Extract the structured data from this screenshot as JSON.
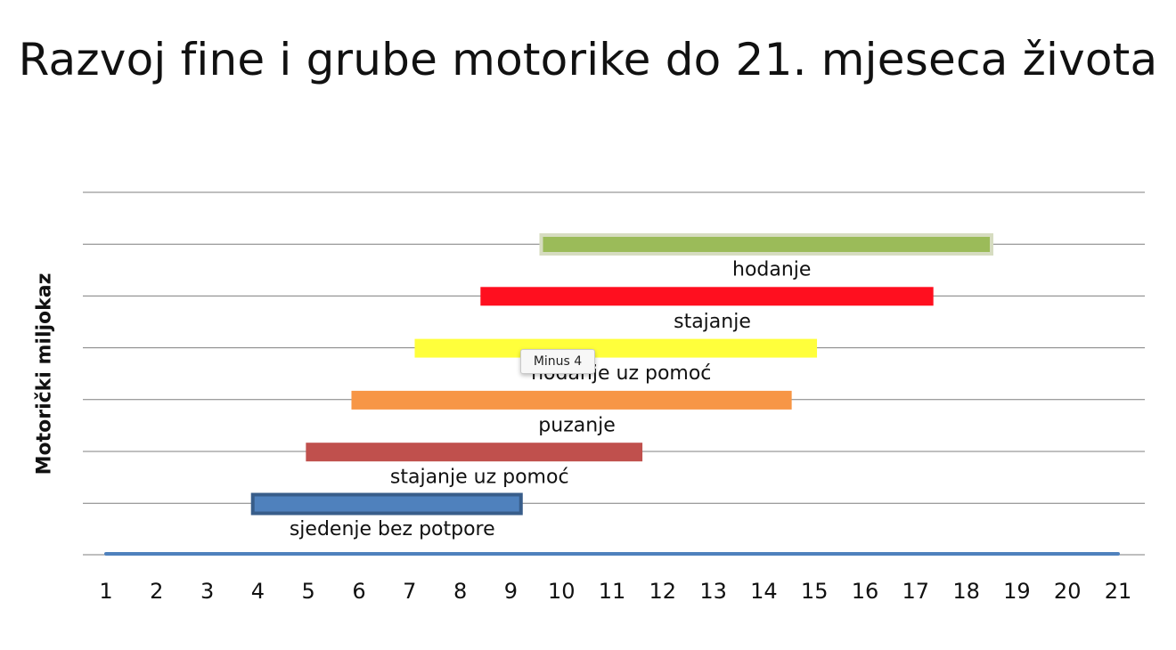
{
  "chart_data": {
    "type": "bar",
    "orientation": "horizontal-range",
    "title": "Razvoj fine i grube motorike do 21. mjeseca života",
    "xlabel": "",
    "ylabel": "Motorički miljokaz",
    "xlim": [
      1,
      21
    ],
    "x_ticks": [
      "1",
      "2",
      "3",
      "4",
      "5",
      "6",
      "7",
      "8",
      "9",
      "10",
      "11",
      "12",
      "13",
      "14",
      "15",
      "16",
      "17",
      "18",
      "19",
      "20",
      "21"
    ],
    "grid": true,
    "bars": [
      {
        "label": "sjedenje bez potpore",
        "start": 3.9,
        "end": 9.2,
        "color": "#4f81bd",
        "border": "#385d8a"
      },
      {
        "label": "stajanje uz pomoć",
        "start": 4.95,
        "end": 11.6,
        "color": "#c0504d",
        "border": ""
      },
      {
        "label": "puzanje",
        "start": 5.85,
        "end": 14.55,
        "color": "#f79646",
        "border": ""
      },
      {
        "label": "hodanje uz pomoć",
        "start": 7.1,
        "end": 15.05,
        "color": "#ffff3b",
        "border": ""
      },
      {
        "label": "stajanje",
        "start": 8.4,
        "end": 17.35,
        "color": "#ff0f1f",
        "border": ""
      },
      {
        "label": "hodanje",
        "start": 9.6,
        "end": 18.5,
        "color": "#9bbb59",
        "border": "#d6dcc0"
      }
    ],
    "tooltip": "Minus 4"
  }
}
